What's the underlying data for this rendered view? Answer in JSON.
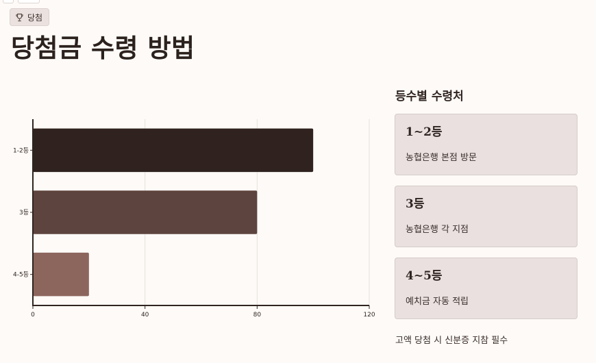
{
  "badge": {
    "icon": "trophy-icon",
    "label": "당첨"
  },
  "page_title": "당첨금 수령 방법",
  "side": {
    "title": "등수별 수령처",
    "cards": [
      {
        "rank": "1~2등",
        "place": "농협은행 본점 방문"
      },
      {
        "rank": "3등",
        "place": "농협은행 각 지점"
      },
      {
        "rank": "4~5등",
        "place": "예치금 자동 적립"
      }
    ],
    "note": "고액 당첨 시 신분증 지참 필수"
  },
  "colors": {
    "background": "#fdfaf7",
    "bar_dark": "#2f221f",
    "bar_mid": "#5e443e",
    "bar_light": "#8c665d",
    "card_bg": "#e9e0df"
  },
  "chart_data": {
    "type": "bar",
    "orientation": "horizontal",
    "categories": [
      "1-2등",
      "3등",
      "4-5등"
    ],
    "values": [
      100,
      80,
      20
    ],
    "bar_colors": [
      "#2f221f",
      "#5e443e",
      "#8c665d"
    ],
    "xlim": [
      0,
      120
    ],
    "xticks": [
      0,
      40,
      80,
      120
    ],
    "grid": true,
    "title": "",
    "xlabel": "",
    "ylabel": ""
  }
}
